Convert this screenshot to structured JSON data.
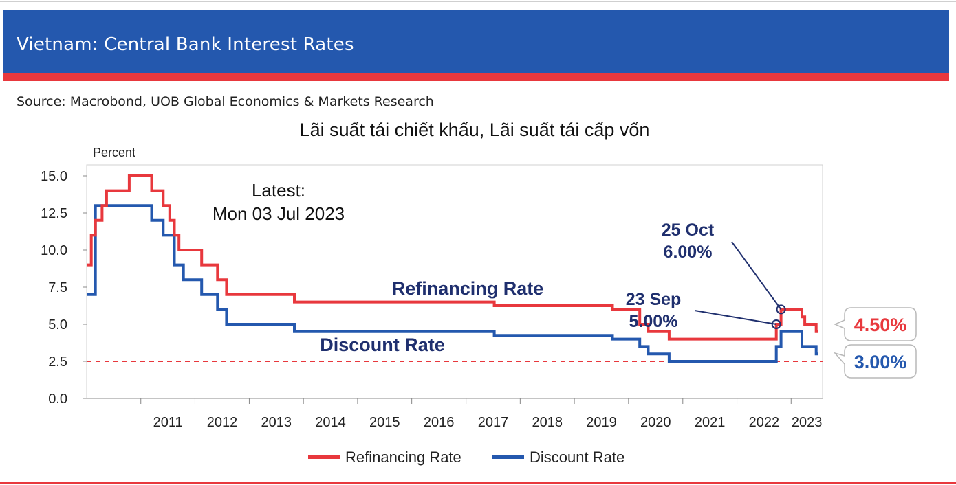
{
  "header": {
    "title": "Vietnam: Central Bank Interest Rates"
  },
  "source": "Source: Macrobond, UOB Global Economics & Markets Research",
  "colors": {
    "header_bg": "#2458AE",
    "accent_red": "#E8383D",
    "refinancing": "#E8383D",
    "discount": "#2458AE",
    "dashed_line": "#E8383D"
  },
  "chart_data": {
    "type": "line",
    "title": "Lãi suất tái chiết khấu, Lãi suất tái cấp vốn",
    "ylabel": "Percent",
    "xlabel": "",
    "ylim": [
      0,
      15
    ],
    "yticks": [
      "15.0",
      "12.5",
      "10.0",
      "7.5",
      "5.0",
      "2.5",
      "0.0"
    ],
    "yticks_values": [
      15,
      12.5,
      10,
      7.5,
      5,
      2.5,
      0
    ],
    "xlim": [
      "2010-01-01",
      "2023-08-01"
    ],
    "xticks": [
      "2011",
      "2012",
      "2013",
      "2014",
      "2015",
      "2016",
      "2017",
      "2018",
      "2019",
      "2020",
      "2021",
      "2022",
      "2023"
    ],
    "xticks_dates": [
      "2011-01-01",
      "2012-01-01",
      "2013-01-01",
      "2014-01-01",
      "2015-01-01",
      "2016-01-01",
      "2017-01-01",
      "2018-01-01",
      "2019-01-01",
      "2020-01-01",
      "2021-01-01",
      "2022-01-01",
      "2023-01-01"
    ],
    "grid": false,
    "legend_position": "bottom",
    "reference_line": {
      "y": 2.5,
      "style": "dashed",
      "color": "#E8383D"
    },
    "series": [
      {
        "name": "Refinancing Rate",
        "color": "#E8383D",
        "label": "Refinancing Rate",
        "points": [
          [
            "2010-01-01",
            9.0
          ],
          [
            "2010-02-01",
            11.0
          ],
          [
            "2010-03-01",
            12.0
          ],
          [
            "2010-04-15",
            13.0
          ],
          [
            "2010-05-15",
            14.0
          ],
          [
            "2010-10-15",
            15.0
          ],
          [
            "2011-03-15",
            14.0
          ],
          [
            "2011-06-01",
            13.0
          ],
          [
            "2011-07-15",
            12.0
          ],
          [
            "2011-08-15",
            11.0
          ],
          [
            "2011-09-15",
            10.0
          ],
          [
            "2012-02-15",
            9.0
          ],
          [
            "2012-06-01",
            8.0
          ],
          [
            "2012-08-01",
            7.0
          ],
          [
            "2013-11-01",
            6.5
          ],
          [
            "2017-07-10",
            6.25
          ],
          [
            "2019-09-15",
            6.0
          ],
          [
            "2020-03-17",
            5.0
          ],
          [
            "2020-05-13",
            4.5
          ],
          [
            "2020-10-01",
            4.0
          ],
          [
            "2022-09-23",
            5.0
          ],
          [
            "2022-10-25",
            6.0
          ],
          [
            "2023-03-15",
            5.5
          ],
          [
            "2023-04-03",
            5.0
          ],
          [
            "2023-06-19",
            4.5
          ],
          [
            "2023-07-03",
            4.5
          ]
        ]
      },
      {
        "name": "Discount Rate",
        "color": "#2458AE",
        "label": "Discount Rate",
        "points": [
          [
            "2010-01-01",
            7.0
          ],
          [
            "2010-03-01",
            13.0
          ],
          [
            "2011-03-15",
            12.0
          ],
          [
            "2011-06-01",
            11.0
          ],
          [
            "2011-08-15",
            9.0
          ],
          [
            "2011-10-15",
            8.0
          ],
          [
            "2012-02-15",
            7.0
          ],
          [
            "2012-06-01",
            6.0
          ],
          [
            "2012-08-01",
            5.0
          ],
          [
            "2013-11-01",
            4.5
          ],
          [
            "2017-07-10",
            4.25
          ],
          [
            "2019-09-15",
            4.0
          ],
          [
            "2020-03-17",
            3.5
          ],
          [
            "2020-05-13",
            3.0
          ],
          [
            "2020-10-01",
            2.5
          ],
          [
            "2022-09-23",
            3.5
          ],
          [
            "2022-10-25",
            4.5
          ],
          [
            "2023-03-15",
            3.5
          ],
          [
            "2023-06-19",
            3.0
          ],
          [
            "2023-07-03",
            3.0
          ]
        ]
      }
    ],
    "annotations": {
      "latest_line1": "Latest:",
      "latest_line2": "Mon 03 Jul 2023",
      "oct_line1": "25 Oct",
      "oct_line2": "6.00%",
      "sep_line1": "23 Sep",
      "sep_line2": "5.00%",
      "oct_point": {
        "date": "2022-10-25",
        "value": 6.0
      },
      "sep_point": {
        "date": "2022-09-23",
        "value": 5.0
      },
      "end_red_label": "4.50%",
      "end_blue_label": "3.00%"
    },
    "legend": [
      "Refinancing Rate",
      "Discount Rate"
    ]
  }
}
